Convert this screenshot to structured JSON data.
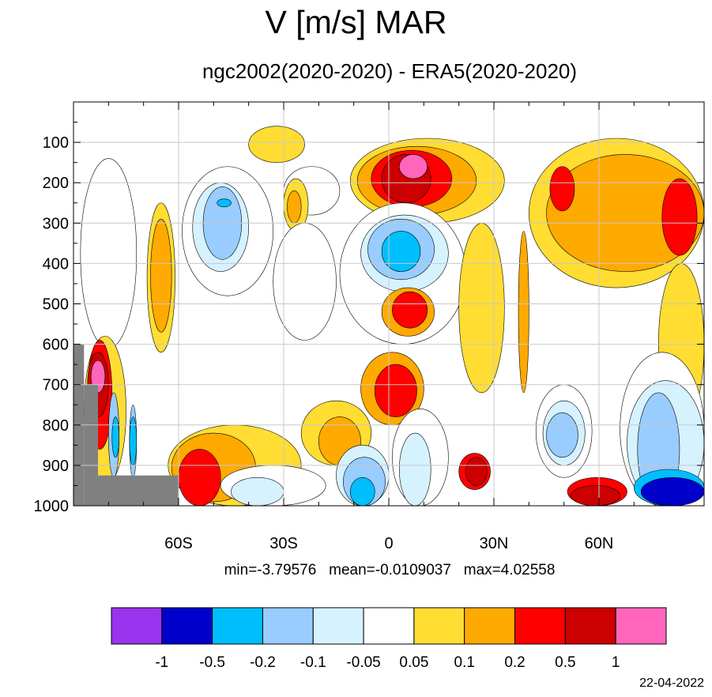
{
  "title": "V [m/s] MAR",
  "subtitle": "ngc2002(2020-2020) - ERA5(2020-2020)",
  "stats": {
    "min_label": "min=-3.79576",
    "mean_label": "mean=-0.0109037",
    "max_label": "max=4.02558"
  },
  "date": "22-04-2022",
  "chart_data": {
    "type": "heatmap",
    "subtype": "filled-contour latitude-pressure cross section",
    "x": {
      "range": [
        -90,
        90
      ],
      "ticks": [
        -60,
        -30,
        0,
        30,
        60
      ],
      "tick_labels": [
        "60S",
        "30S",
        "0",
        "30N",
        "60N"
      ],
      "grid": true
    },
    "y": {
      "range": [
        0,
        1000
      ],
      "inverted": true,
      "ticks": [
        100,
        200,
        300,
        400,
        500,
        600,
        700,
        800,
        900,
        1000
      ],
      "tick_labels": [
        "100",
        "200",
        "300",
        "400",
        "500",
        "600",
        "700",
        "800",
        "900",
        "1000"
      ],
      "grid": true
    },
    "colorbar": {
      "placement": "bottom",
      "levels": [
        -1,
        -0.5,
        -0.2,
        -0.1,
        -0.05,
        0.05,
        0.1,
        0.2,
        0.5,
        1
      ],
      "level_labels": [
        "-1",
        "-0.5",
        "-0.2",
        "-0.1",
        "-0.05",
        "0.05",
        "0.1",
        "0.2",
        "0.5",
        "1"
      ],
      "colors": [
        "#9933ee",
        "#0000cc",
        "#00bfff",
        "#99ccff",
        "#d6f2ff",
        "#ffffff",
        "#ffdd33",
        "#ffaa00",
        "#ff0000",
        "#cc0000",
        "#ff66bb"
      ]
    },
    "missing_color": "#808080",
    "min": -3.79576,
    "mean": -0.0109037,
    "max": 4.02558,
    "regions": [
      {
        "lat": [
          -86,
          -74
        ],
        "p": [
          170,
          540
        ],
        "level": -0.1
      },
      {
        "lat": [
          -85,
          -76
        ],
        "p": [
          210,
          480
        ],
        "level": -0.2
      },
      {
        "lat": [
          -88,
          -72
        ],
        "p": [
          140,
          610
        ],
        "level": -0.05
      },
      {
        "lat": [
          -69,
          -61
        ],
        "p": [
          250,
          620
        ],
        "level": 0.05
      },
      {
        "lat": [
          -68,
          -62
        ],
        "p": [
          290,
          570
        ],
        "level": 0.1
      },
      {
        "lat": [
          -59,
          -33
        ],
        "p": [
          160,
          480
        ],
        "level": -0.05
      },
      {
        "lat": [
          -56,
          -40
        ],
        "p": [
          200,
          420
        ],
        "level": -0.1
      },
      {
        "lat": [
          -53,
          -42
        ],
        "p": [
          210,
          390
        ],
        "level": -0.2
      },
      {
        "lat": [
          -49,
          -45
        ],
        "p": [
          240,
          260
        ],
        "level": -0.5
      },
      {
        "lat": [
          -30,
          -14
        ],
        "p": [
          160,
          280
        ],
        "level": -0.05
      },
      {
        "lat": [
          -30,
          -23
        ],
        "p": [
          190,
          320
        ],
        "level": 0.05
      },
      {
        "lat": [
          -29,
          -25
        ],
        "p": [
          220,
          300
        ],
        "level": 0.1
      },
      {
        "lat": [
          -33,
          -15
        ],
        "p": [
          300,
          590
        ],
        "level": -0.05
      },
      {
        "lat": [
          -40,
          -24
        ],
        "p": [
          60,
          150
        ],
        "level": 0.05
      },
      {
        "lat": [
          -11,
          33
        ],
        "p": [
          90,
          300
        ],
        "level": 0.05
      },
      {
        "lat": [
          -9,
          25
        ],
        "p": [
          110,
          280
        ],
        "level": 0.1
      },
      {
        "lat": [
          -5,
          18
        ],
        "p": [
          120,
          260
        ],
        "level": 0.2
      },
      {
        "lat": [
          -2,
          12
        ],
        "p": [
          130,
          250
        ],
        "level": 0.5
      },
      {
        "lat": [
          3,
          11
        ],
        "p": [
          130,
          190
        ],
        "level": 1
      },
      {
        "lat": [
          -14,
          22
        ],
        "p": [
          250,
          600
        ],
        "level": -0.05
      },
      {
        "lat": [
          -8,
          17
        ],
        "p": [
          280,
          470
        ],
        "level": -0.1
      },
      {
        "lat": [
          -6,
          13
        ],
        "p": [
          290,
          440
        ],
        "level": -0.2
      },
      {
        "lat": [
          -2,
          9
        ],
        "p": [
          320,
          420
        ],
        "level": -0.5
      },
      {
        "lat": [
          -2,
          13
        ],
        "p": [
          460,
          580
        ],
        "level": 0.1
      },
      {
        "lat": [
          1,
          11
        ],
        "p": [
          470,
          560
        ],
        "level": 0.2
      },
      {
        "lat": [
          -8,
          10
        ],
        "p": [
          620,
          800
        ],
        "level": 0.1
      },
      {
        "lat": [
          -4,
          8
        ],
        "p": [
          650,
          780
        ],
        "level": 0.2
      },
      {
        "lat": [
          20,
          33
        ],
        "p": [
          300,
          720
        ],
        "level": 0.05
      },
      {
        "lat": [
          37,
          40
        ],
        "p": [
          320,
          720
        ],
        "level": 0.1
      },
      {
        "lat": [
          40,
          90
        ],
        "p": [
          90,
          460
        ],
        "level": 0.05
      },
      {
        "lat": [
          45,
          90
        ],
        "p": [
          130,
          420
        ],
        "level": 0.1
      },
      {
        "lat": [
          46,
          53
        ],
        "p": [
          160,
          270
        ],
        "level": 0.2
      },
      {
        "lat": [
          78,
          88
        ],
        "p": [
          190,
          380
        ],
        "level": 0.2
      },
      {
        "lat": [
          77,
          90
        ],
        "p": [
          400,
          800
        ],
        "level": 0.05
      },
      {
        "lat": [
          -25,
          -5
        ],
        "p": [
          740,
          900
        ],
        "level": 0.05
      },
      {
        "lat": [
          -20,
          -8
        ],
        "p": [
          780,
          900
        ],
        "level": 0.1
      },
      {
        "lat": [
          -63,
          -25
        ],
        "p": [
          800,
          1000
        ],
        "level": 0.05
      },
      {
        "lat": [
          -62,
          -38
        ],
        "p": [
          820,
          990
        ],
        "level": 0.1
      },
      {
        "lat": [
          -60,
          -48
        ],
        "p": [
          860,
          1000
        ],
        "level": 0.2
      },
      {
        "lat": [
          -48,
          -18
        ],
        "p": [
          900,
          1000
        ],
        "level": -0.05
      },
      {
        "lat": [
          -45,
          -30
        ],
        "p": [
          930,
          1000
        ],
        "level": -0.1
      },
      {
        "lat": [
          -15,
          0
        ],
        "p": [
          850,
          1000
        ],
        "level": -0.1
      },
      {
        "lat": [
          -13,
          -1
        ],
        "p": [
          880,
          1000
        ],
        "level": -0.2
      },
      {
        "lat": [
          -11,
          -4
        ],
        "p": [
          930,
          1000
        ],
        "level": -0.5
      },
      {
        "lat": [
          1,
          17
        ],
        "p": [
          760,
          1000
        ],
        "level": -0.05
      },
      {
        "lat": [
          3,
          12
        ],
        "p": [
          820,
          1000
        ],
        "level": -0.1
      },
      {
        "lat": [
          20,
          29
        ],
        "p": [
          870,
          960
        ],
        "level": 0.2
      },
      {
        "lat": [
          22,
          28
        ],
        "p": [
          880,
          950
        ],
        "level": 0.5
      },
      {
        "lat": [
          42,
          58
        ],
        "p": [
          700,
          930
        ],
        "level": -0.05
      },
      {
        "lat": [
          44,
          56
        ],
        "p": [
          740,
          900
        ],
        "level": -0.1
      },
      {
        "lat": [
          45,
          54
        ],
        "p": [
          770,
          880
        ],
        "level": -0.2
      },
      {
        "lat": [
          51,
          68
        ],
        "p": [
          930,
          1000
        ],
        "level": 0.2
      },
      {
        "lat": [
          52,
          66
        ],
        "p": [
          950,
          1000
        ],
        "level": 0.5
      },
      {
        "lat": [
          66,
          90
        ],
        "p": [
          620,
          1000
        ],
        "level": -0.05
      },
      {
        "lat": [
          68,
          90
        ],
        "p": [
          690,
          1000
        ],
        "level": -0.1
      },
      {
        "lat": [
          71,
          83
        ],
        "p": [
          720,
          1000
        ],
        "level": -0.2
      },
      {
        "lat": [
          70,
          90
        ],
        "p": [
          910,
          1000
        ],
        "level": -0.5
      },
      {
        "lat": [
          72,
          90
        ],
        "p": [
          930,
          1000
        ],
        "level": -1
      },
      {
        "lat": [
          -87,
          -75
        ],
        "p": [
          580,
          950
        ],
        "level": 0.05
      },
      {
        "lat": [
          -86,
          -79
        ],
        "p": [
          590,
          860
        ],
        "level": 0.2
      },
      {
        "lat": [
          -86,
          -80
        ],
        "p": [
          620,
          780
        ],
        "level": 0.5
      },
      {
        "lat": [
          -85,
          -81
        ],
        "p": [
          640,
          720
        ],
        "level": 1
      },
      {
        "lat": [
          -80,
          -77
        ],
        "p": [
          720,
          930
        ],
        "level": -0.2
      },
      {
        "lat": [
          -79,
          -77
        ],
        "p": [
          780,
          880
        ],
        "level": -0.5
      },
      {
        "lat": [
          -74,
          -72
        ],
        "p": [
          750,
          930
        ],
        "level": -0.2
      },
      {
        "lat": [
          -74,
          -72
        ],
        "p": [
          780,
          900
        ],
        "level": -0.5
      }
    ],
    "missing_regions": [
      {
        "lat": [
          -90,
          -87
        ],
        "p": [
          600,
          1000
        ]
      },
      {
        "lat": [
          -87,
          -83
        ],
        "p": [
          700,
          1000
        ]
      },
      {
        "lat": [
          -83,
          -60
        ],
        "p": [
          925,
          1000
        ]
      }
    ]
  }
}
